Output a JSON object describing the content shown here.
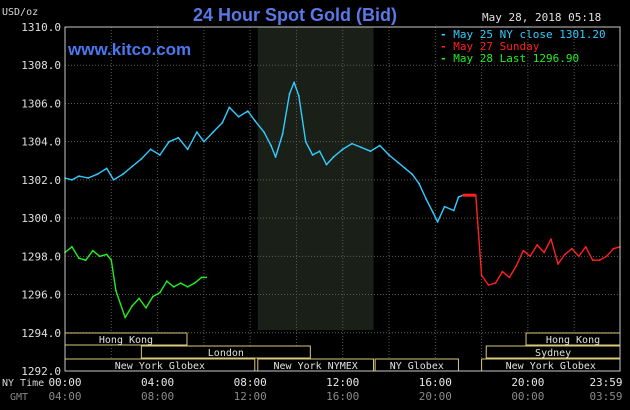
{
  "chart_data": {
    "type": "line",
    "title": "24 Hour Spot Gold (Bid)",
    "unit": "USD/oz",
    "timestamp": "May 28, 2018 05:18",
    "watermark": "www.kitco.com",
    "ylim": [
      1292.0,
      1310.0
    ],
    "y_ticks": [
      "1292.0",
      "1294.0",
      "1296.0",
      "1298.0",
      "1300.0",
      "1302.0",
      "1304.0",
      "1306.0",
      "1308.0",
      "1310.0"
    ],
    "x_axis_label_primary": "NY Time",
    "x_axis_label_secondary": "GMT",
    "x_ticks": [
      {
        "hour": 0,
        "ny": "00:00",
        "gmt": "04:00"
      },
      {
        "hour": 4,
        "ny": "04:00",
        "gmt": "08:00"
      },
      {
        "hour": 8,
        "ny": "08:00",
        "gmt": "12:00"
      },
      {
        "hour": 12,
        "ny": "12:00",
        "gmt": "16:00"
      },
      {
        "hour": 16,
        "ny": "16:00",
        "gmt": "20:00"
      },
      {
        "hour": 20,
        "ny": "20:00",
        "gmt": "00:00"
      },
      {
        "hour": 23.98,
        "ny": "23:59",
        "gmt": "03:59"
      }
    ],
    "grid": true,
    "shaded_region": {
      "start": 8.33,
      "end": 13.33
    },
    "legend": [
      {
        "text": "May 25 NY close 1301.20",
        "color": "#33ccff"
      },
      {
        "text": "May 27 Sunday",
        "color": "#ff2020"
      },
      {
        "text": "May 28 Last 1296.90",
        "color": "#22ee22"
      }
    ],
    "series": [
      {
        "name": "May 25 NY close 1301.20",
        "color": "#33ccff",
        "points": [
          [
            0,
            1302.1
          ],
          [
            0.3,
            1302.0
          ],
          [
            0.6,
            1302.2
          ],
          [
            1.0,
            1302.1
          ],
          [
            1.4,
            1302.3
          ],
          [
            1.8,
            1302.6
          ],
          [
            2.1,
            1302.0
          ],
          [
            2.5,
            1302.3
          ],
          [
            2.9,
            1302.7
          ],
          [
            3.3,
            1303.1
          ],
          [
            3.7,
            1303.6
          ],
          [
            4.1,
            1303.3
          ],
          [
            4.5,
            1304.0
          ],
          [
            4.9,
            1304.2
          ],
          [
            5.3,
            1303.6
          ],
          [
            5.7,
            1304.5
          ],
          [
            6.0,
            1304.0
          ],
          [
            6.4,
            1304.5
          ],
          [
            6.8,
            1305.0
          ],
          [
            7.1,
            1305.8
          ],
          [
            7.5,
            1305.3
          ],
          [
            7.9,
            1305.6
          ],
          [
            8.2,
            1305.1
          ],
          [
            8.6,
            1304.5
          ],
          [
            8.9,
            1303.8
          ],
          [
            9.1,
            1303.2
          ],
          [
            9.4,
            1304.4
          ],
          [
            9.7,
            1306.5
          ],
          [
            9.9,
            1307.1
          ],
          [
            10.1,
            1306.4
          ],
          [
            10.4,
            1304.0
          ],
          [
            10.7,
            1303.3
          ],
          [
            11.0,
            1303.5
          ],
          [
            11.3,
            1302.8
          ],
          [
            11.6,
            1303.2
          ],
          [
            12.0,
            1303.6
          ],
          [
            12.4,
            1303.9
          ],
          [
            12.8,
            1303.7
          ],
          [
            13.2,
            1303.5
          ],
          [
            13.6,
            1303.8
          ],
          [
            14.0,
            1303.3
          ],
          [
            14.4,
            1302.9
          ],
          [
            14.7,
            1302.6
          ],
          [
            15.0,
            1302.3
          ],
          [
            15.3,
            1301.8
          ],
          [
            15.6,
            1301.0
          ],
          [
            15.9,
            1300.3
          ],
          [
            16.1,
            1299.8
          ],
          [
            16.4,
            1300.6
          ],
          [
            16.8,
            1300.4
          ],
          [
            17.0,
            1301.1
          ],
          [
            17.2,
            1301.2
          ]
        ]
      },
      {
        "name": "May 27 Sunday",
        "color": "#ff2020",
        "points": [
          [
            17.2,
            1301.2
          ],
          [
            17.5,
            1301.2
          ],
          [
            17.75,
            1301.2
          ],
          [
            17.85,
            1299.5
          ],
          [
            18.0,
            1297.0
          ],
          [
            18.3,
            1296.5
          ],
          [
            18.6,
            1296.6
          ],
          [
            18.9,
            1297.2
          ],
          [
            19.2,
            1296.9
          ],
          [
            19.5,
            1297.5
          ],
          [
            19.8,
            1298.3
          ],
          [
            20.1,
            1298.0
          ],
          [
            20.4,
            1298.6
          ],
          [
            20.7,
            1298.2
          ],
          [
            21.0,
            1298.9
          ],
          [
            21.3,
            1297.6
          ],
          [
            21.6,
            1298.1
          ],
          [
            21.9,
            1298.4
          ],
          [
            22.2,
            1298.0
          ],
          [
            22.5,
            1298.5
          ],
          [
            22.8,
            1297.8
          ],
          [
            23.1,
            1297.8
          ],
          [
            23.4,
            1298.0
          ],
          [
            23.7,
            1298.4
          ],
          [
            23.98,
            1298.5
          ]
        ]
      },
      {
        "name": "May 28 Last 1296.90",
        "color": "#22ee22",
        "points": [
          [
            0,
            1298.2
          ],
          [
            0.3,
            1298.5
          ],
          [
            0.6,
            1297.9
          ],
          [
            0.9,
            1297.8
          ],
          [
            1.2,
            1298.3
          ],
          [
            1.5,
            1298.0
          ],
          [
            1.8,
            1298.1
          ],
          [
            2.0,
            1297.8
          ],
          [
            2.2,
            1296.2
          ],
          [
            2.4,
            1295.5
          ],
          [
            2.6,
            1294.8
          ],
          [
            2.9,
            1295.4
          ],
          [
            3.2,
            1295.8
          ],
          [
            3.5,
            1295.3
          ],
          [
            3.8,
            1295.9
          ],
          [
            4.1,
            1296.1
          ],
          [
            4.4,
            1296.7
          ],
          [
            4.7,
            1296.4
          ],
          [
            5.0,
            1296.6
          ],
          [
            5.3,
            1296.4
          ],
          [
            5.6,
            1296.6
          ],
          [
            5.9,
            1296.9
          ],
          [
            6.1,
            1296.9
          ]
        ]
      }
    ],
    "sessions": [
      {
        "label": "Hong Kong",
        "start": 0.0,
        "end": 5.27,
        "row": 0
      },
      {
        "label": "Hong Kong",
        "start": 19.92,
        "end": 23.98,
        "row": 0
      },
      {
        "label": "London",
        "start": 3.3,
        "end": 10.6,
        "row": 1
      },
      {
        "label": "Sydney",
        "start": 18.2,
        "end": 23.98,
        "row": 1
      },
      {
        "label": "New York Globex",
        "start": 0.0,
        "end": 8.2,
        "row": 2
      },
      {
        "label": "New York NYMEX",
        "start": 8.33,
        "end": 13.33,
        "row": 2
      },
      {
        "label": "NY Globex",
        "start": 13.4,
        "end": 17.0,
        "row": 2
      },
      {
        "label": "New York Globex",
        "start": 18.0,
        "end": 23.98,
        "row": 2
      }
    ],
    "session_bar_fill": "#000000",
    "session_bar_stroke": "#d8c87a"
  }
}
